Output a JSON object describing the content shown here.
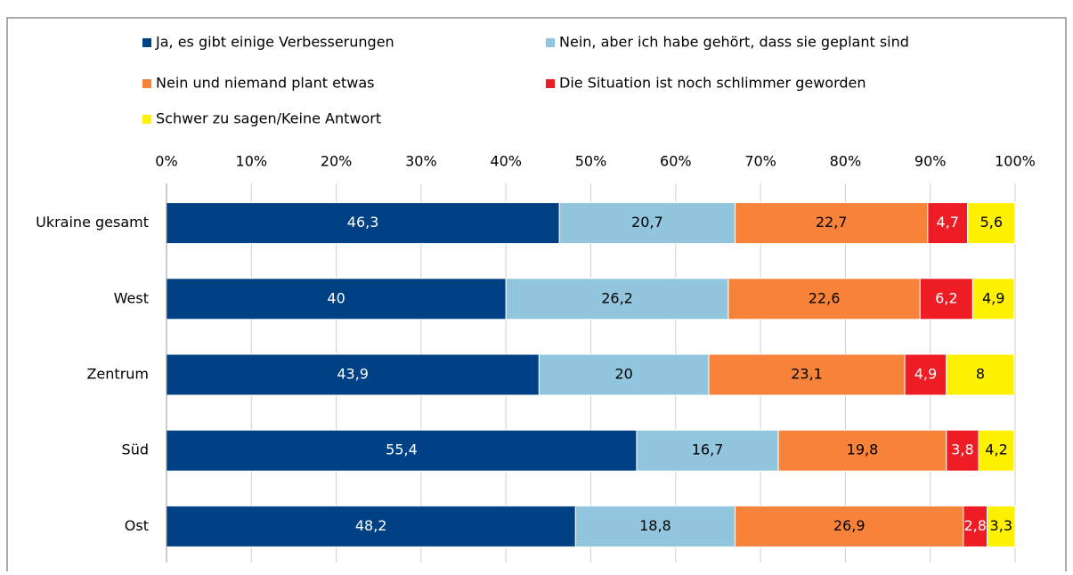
{
  "chart_data": {
    "type": "stacked-bar-horizontal",
    "categories": [
      "Ukraine gesamt",
      "West",
      "Zentrum",
      "Süd",
      "Ost"
    ],
    "series": [
      {
        "name": "Ja, es gibt einige Verbesserungen",
        "color": "#004185",
        "values": [
          46.3,
          40,
          43.9,
          55.4,
          48.2
        ],
        "value_labels": [
          "46,3",
          "40",
          "43,9",
          "55,4",
          "48,2"
        ]
      },
      {
        "name": "Nein, aber ich habe gehört, dass sie geplant sind",
        "color": "#92c5de",
        "values": [
          20.7,
          26.2,
          20,
          16.7,
          18.8
        ],
        "value_labels": [
          "20,7",
          "26,2",
          "20",
          "16,7",
          "18,8"
        ]
      },
      {
        "name": "Nein und niemand plant etwas",
        "color": "#f7833b",
        "values": [
          22.7,
          22.6,
          23.1,
          19.8,
          26.9
        ],
        "value_labels": [
          "22,7",
          "22,6",
          "23,1",
          "19,8",
          "26,9"
        ]
      },
      {
        "name": "Die Situation ist noch schlimmer geworden",
        "color": "#ee1c25",
        "values": [
          4.7,
          6.2,
          4.9,
          3.8,
          2.8
        ],
        "value_labels": [
          "4,7",
          "6,2",
          "4,9",
          "3,8",
          "2,8"
        ]
      },
      {
        "name": "Schwer zu sagen/Keine Antwort",
        "color": "#fff200",
        "values": [
          5.6,
          4.9,
          8,
          4.2,
          3.3
        ],
        "value_labels": [
          "5,6",
          "4,9",
          "8",
          "4,2",
          "3,3"
        ]
      }
    ],
    "xlim": [
      0,
      100
    ],
    "xticks": [
      {
        "value": 0,
        "label": "0%"
      },
      {
        "value": 10,
        "label": "10%"
      },
      {
        "value": 20,
        "label": "20%"
      },
      {
        "value": 30,
        "label": "30%"
      },
      {
        "value": 40,
        "label": "40%"
      },
      {
        "value": 50,
        "label": "50%"
      },
      {
        "value": 60,
        "label": "60%"
      },
      {
        "value": 70,
        "label": "70%"
      },
      {
        "value": 80,
        "label": "80%"
      },
      {
        "value": 90,
        "label": "90%"
      },
      {
        "value": 100,
        "label": "100%"
      }
    ],
    "grid": true,
    "legend": "top"
  }
}
